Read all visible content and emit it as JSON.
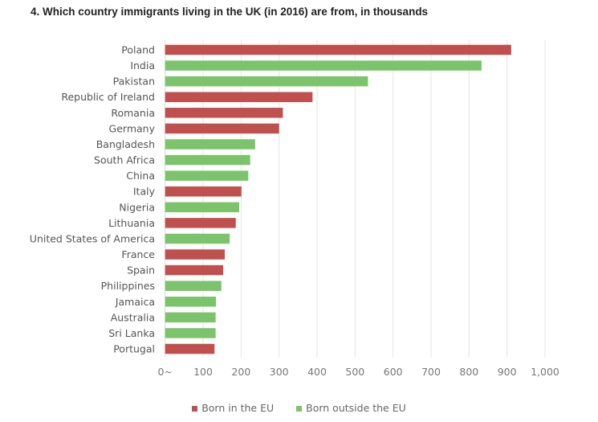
{
  "title": "4.  Which country immigrants living in the UK (in 2016) are from, in thousands",
  "chart_data": {
    "type": "bar",
    "orientation": "horizontal",
    "title": "4.  Which country immigrants living in the UK (in 2016) are from, in thousands",
    "categories": [
      "Poland",
      "India",
      "Pakistan",
      "Republic of Ireland",
      "Romania",
      "Germany",
      "Bangladesh",
      "South Africa",
      "China",
      "Italy",
      "Nigeria",
      "Lithuania",
      "United States of America",
      "France",
      "Spain",
      "Philippines",
      "Jamaica",
      "Australia",
      "Sri Lanka",
      "Portugal"
    ],
    "values": [
      911,
      833,
      534,
      388,
      310,
      300,
      237,
      224,
      219,
      201,
      195,
      186,
      170,
      157,
      153,
      148,
      134,
      133,
      133,
      130
    ],
    "group": [
      "eu",
      "non",
      "non",
      "eu",
      "eu",
      "eu",
      "non",
      "non",
      "non",
      "eu",
      "non",
      "eu",
      "non",
      "eu",
      "eu",
      "non",
      "non",
      "non",
      "non",
      "eu"
    ],
    "series": [
      {
        "key": "eu",
        "name": "Born in the EU",
        "color": "#c0504d"
      },
      {
        "key": "non",
        "name": "Born outside the EU",
        "color": "#7cc46c"
      }
    ],
    "xlim": [
      0,
      1000
    ],
    "ticks": [
      "0~",
      "100",
      "200",
      "300",
      "400",
      "500",
      "600",
      "700",
      "800",
      "900",
      "1,000"
    ],
    "grid": true,
    "legend": "bottom"
  }
}
